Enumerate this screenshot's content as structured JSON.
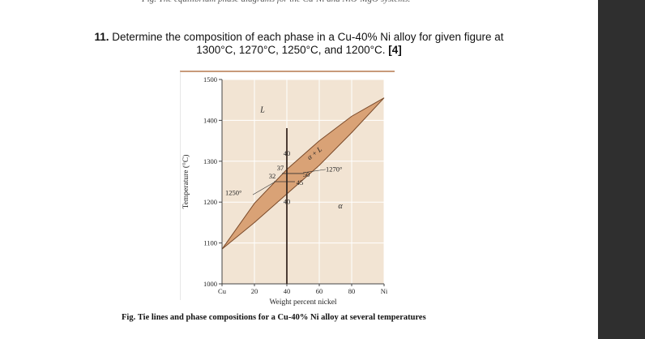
{
  "question": {
    "number": "11.",
    "text_line1": "Determine the composition of each phase in a Cu-40% Ni alloy for given figure at",
    "text_line2": "1300°C, 1270°C, 1250°C, and 1200°C.",
    "marks": "[4]"
  },
  "chart_data": {
    "type": "area",
    "ylabel": "Temperature (°C)",
    "xlabel": "Weight percent nickel",
    "x_ticks": [
      "Cu",
      "20",
      "40",
      "60",
      "80",
      "Ni"
    ],
    "x_tick_values": [
      0,
      20,
      40,
      60,
      80,
      100
    ],
    "y_ticks": [
      "1000",
      "1100",
      "1200",
      "1300",
      "1400",
      "1500"
    ],
    "y_tick_values": [
      1000,
      1100,
      1200,
      1300,
      1400,
      1500
    ],
    "xlim": [
      0,
      100
    ],
    "ylim": [
      1000,
      1500
    ],
    "grid": true,
    "liquidus": [
      [
        0,
        1085
      ],
      [
        20,
        1197
      ],
      [
        40,
        1280
      ],
      [
        60,
        1350
      ],
      [
        80,
        1410
      ],
      [
        100,
        1455
      ]
    ],
    "solidus": [
      [
        0,
        1085
      ],
      [
        20,
        1150
      ],
      [
        40,
        1220
      ],
      [
        60,
        1290
      ],
      [
        80,
        1370
      ],
      [
        100,
        1455
      ]
    ],
    "alloy_x": 40,
    "phase_labels": [
      "L",
      "α + L",
      "α"
    ],
    "annotations": {
      "t1270": "1270°",
      "t1250": "1250°",
      "c40_top": "40",
      "c37": "37",
      "c32": "32",
      "c50": "50",
      "c45": "45",
      "c40_bottom": "40"
    },
    "colors": {
      "two_phase_fill": "#d9a276",
      "background_fill": "#f2e4d3",
      "alloy_line": "#3a2a22",
      "frame_top": "#c89a7a"
    }
  },
  "caption": {
    "label": "Fig.",
    "text": "Tie lines and phase compositions for a Cu-40% Ni alloy at several temperatures"
  }
}
